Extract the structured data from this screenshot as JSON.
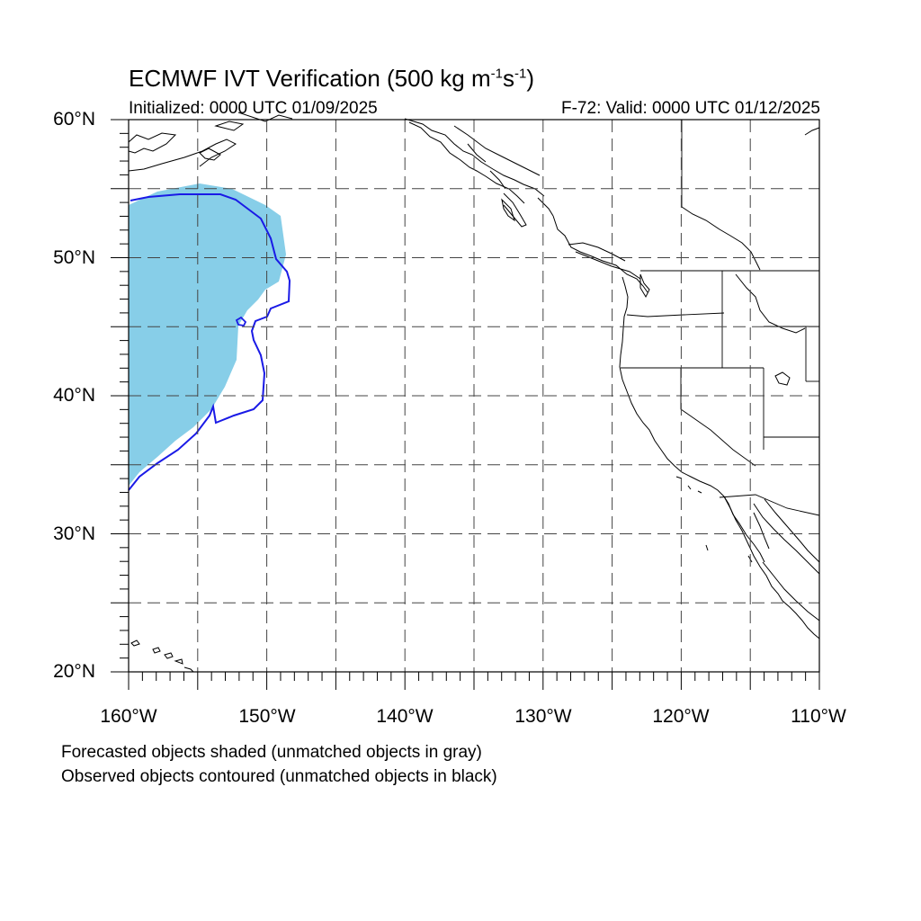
{
  "title": {
    "main": "ECMWF IVT Verification (500 kg m",
    "exp1": "-1",
    "mid": "s",
    "exp2": "-1",
    "close": ")"
  },
  "initialized": "Initialized: 0000 UTC 01/09/2025",
  "valid": "F-72: Valid: 0000 UTC 01/12/2025",
  "lat_labels": [
    "60°N",
    "50°N",
    "40°N",
    "30°N",
    "20°N"
  ],
  "lon_labels": [
    "160°W",
    "150°W",
    "140°W",
    "130°W",
    "120°W",
    "110°W"
  ],
  "legend": [
    "Forecasted objects shaded (unmatched objects in gray)",
    "Observed objects contoured (unmatched objects in black)"
  ],
  "colors": {
    "forecast_fill": "#87CEE8",
    "observed_contour": "#1A1AE6",
    "coastline": "#000000",
    "grid": "#444444"
  }
}
